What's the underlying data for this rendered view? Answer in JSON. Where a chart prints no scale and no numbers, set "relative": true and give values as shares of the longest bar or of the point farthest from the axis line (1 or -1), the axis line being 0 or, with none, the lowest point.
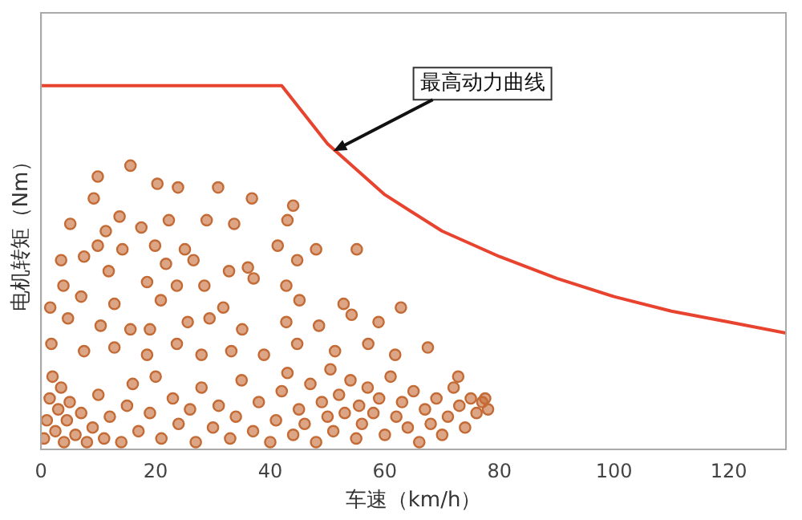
{
  "chart_data": {
    "type": "scatter",
    "xlabel": "车速（km/h）",
    "ylabel": "电机转矩（Nm）",
    "relative": true,
    "xlim": [
      0,
      130
    ],
    "xticks": [
      0,
      20,
      40,
      60,
      80,
      100,
      120
    ],
    "tick_labels": "x",
    "grid": false,
    "legend": false,
    "marker": "circle",
    "annotations": [
      {
        "text": "最高动力曲线",
        "x": 51,
        "y": 0.82
      }
    ],
    "series": [
      {
        "type": "line",
        "color": "#e8432e",
        "marker": "none",
        "x": [
          0,
          42,
          50,
          60,
          70,
          80,
          90,
          100,
          110,
          120,
          130
        ],
        "values": [
          1,
          1,
          0.84,
          0.7,
          0.6,
          0.53,
          0.47,
          0.42,
          0.38,
          0.35,
          0.32
        ]
      },
      {
        "color": "#c46a35",
        "x": [
          9.9,
          15.6,
          9.2,
          20.3,
          23.9,
          30.9,
          36.8,
          44,
          5.1,
          13.7,
          22.3,
          28.9,
          33.7,
          11.3,
          17.5,
          43,
          9.9,
          14.2,
          19.9,
          25.1,
          41.3,
          48,
          55.1,
          3.5,
          7.5,
          11.8,
          21.8,
          26.6,
          32.8,
          36.1,
          44.7,
          3.9,
          18.5,
          23.7,
          28.5,
          37.1,
          42.8,
          7,
          12.8,
          20.9,
          31.8,
          45.1,
          52.8,
          62.8,
          58.9,
          67.5,
          72.8,
          77.5,
          1.6,
          4.7,
          10.4,
          15.6,
          19,
          25.6,
          29.4,
          35.1,
          42.8,
          48.5,
          54.2,
          1.8,
          7.5,
          12.8,
          18.5,
          23.7,
          28,
          33.2,
          38.9,
          44.7,
          51.3,
          57.1,
          61.8,
          0.5,
          1,
          1.5,
          2,
          2.5,
          3,
          3.5,
          4,
          4.5,
          5,
          6,
          7,
          8,
          9,
          10,
          11,
          12,
          14,
          15,
          16,
          17,
          19,
          20,
          21,
          23,
          24,
          26,
          27,
          28,
          30,
          31,
          33,
          34,
          35,
          37,
          38,
          40,
          41,
          42,
          43,
          44,
          45,
          46,
          47,
          48,
          49,
          50,
          50.5,
          51,
          52,
          53,
          54,
          55,
          55.5,
          56,
          57,
          58,
          59,
          60,
          61,
          62,
          63,
          64,
          65,
          66,
          67,
          68,
          69,
          70,
          71,
          72,
          73,
          74,
          75,
          76,
          77,
          78
        ],
        "values": [
          0.75,
          0.78,
          0.69,
          0.73,
          0.72,
          0.72,
          0.69,
          0.67,
          0.62,
          0.64,
          0.63,
          0.63,
          0.62,
          0.6,
          0.61,
          0.63,
          0.56,
          0.55,
          0.56,
          0.55,
          0.56,
          0.55,
          0.55,
          0.52,
          0.53,
          0.49,
          0.51,
          0.52,
          0.49,
          0.5,
          0.52,
          0.45,
          0.46,
          0.45,
          0.45,
          0.47,
          0.45,
          0.42,
          0.4,
          0.41,
          0.39,
          0.41,
          0.4,
          0.39,
          0.35,
          0.28,
          0.2,
          0.14,
          0.39,
          0.36,
          0.34,
          0.33,
          0.33,
          0.35,
          0.36,
          0.33,
          0.35,
          0.34,
          0.37,
          0.29,
          0.27,
          0.28,
          0.26,
          0.29,
          0.26,
          0.27,
          0.26,
          0.29,
          0.27,
          0.29,
          0.26,
          0.03,
          0.08,
          0.14,
          0.2,
          0.05,
          0.11,
          0.17,
          0.02,
          0.08,
          0.13,
          0.04,
          0.1,
          0.02,
          0.06,
          0.15,
          0.03,
          0.09,
          0.02,
          0.12,
          0.18,
          0.05,
          0.1,
          0.2,
          0.03,
          0.14,
          0.07,
          0.11,
          0.02,
          0.17,
          0.06,
          0.12,
          0.03,
          0.09,
          0.19,
          0.05,
          0.13,
          0.02,
          0.08,
          0.16,
          0.21,
          0.04,
          0.11,
          0.07,
          0.18,
          0.02,
          0.13,
          0.09,
          0.22,
          0.05,
          0.15,
          0.1,
          0.19,
          0.03,
          0.12,
          0.07,
          0.17,
          0.1,
          0.14,
          0.04,
          0.2,
          0.09,
          0.13,
          0.06,
          0.16,
          0.02,
          0.11,
          0.07,
          0.14,
          0.04,
          0.09,
          0.17,
          0.12,
          0.06,
          0.14,
          0.1,
          0.13,
          0.11
        ]
      }
    ]
  }
}
